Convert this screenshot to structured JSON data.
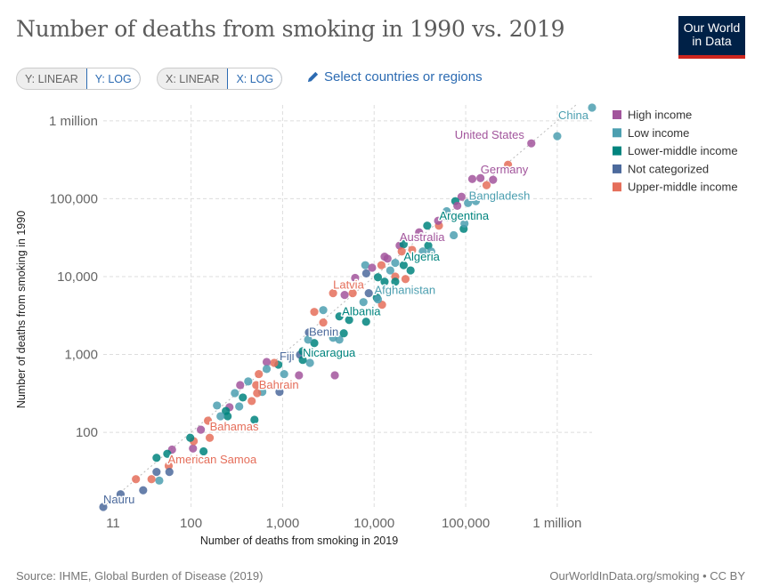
{
  "header": {
    "title": "Number of deaths from smoking in 1990 vs. 2019",
    "logo_line1": "Our World",
    "logo_line2": "in Data"
  },
  "controls": {
    "y_linear": "Y: LINEAR",
    "y_log": "Y: LOG",
    "x_linear": "X: LINEAR",
    "x_log": "X: LOG",
    "select": "Select countries or regions",
    "select_icon": "pencil-icon"
  },
  "footer": {
    "source": "Source: IHME, Global Burden of Disease (2019)",
    "credit": "OurWorldInData.org/smoking • CC BY"
  },
  "chart_data": {
    "type": "scatter",
    "title": "Number of deaths from smoking in 1990 vs. 2019",
    "xlabel": "Number of deaths from smoking in 2019",
    "ylabel": "Number of deaths from smoking in 1990",
    "xscale": "log",
    "yscale": "log",
    "xlim": [
      11,
      2400000
    ],
    "ylim": [
      11,
      1600000
    ],
    "xticks": [
      {
        "v": 11,
        "label": "11"
      },
      {
        "v": 100,
        "label": "100"
      },
      {
        "v": 1000,
        "label": "1,000"
      },
      {
        "v": 10000,
        "label": "10,000"
      },
      {
        "v": 100000,
        "label": "100,000"
      },
      {
        "v": 1000000,
        "label": "1 million"
      }
    ],
    "yticks": [
      {
        "v": 100,
        "label": "100"
      },
      {
        "v": 1000,
        "label": "1,000"
      },
      {
        "v": 10000,
        "label": "10,000"
      },
      {
        "v": 100000,
        "label": "100,000"
      },
      {
        "v": 1000000,
        "label": "1 million"
      }
    ],
    "grid": true,
    "legend_position": "right",
    "reference_line": "y = x (dotted)",
    "groups": [
      {
        "key": "H",
        "name": "High income",
        "color": "#a2559c"
      },
      {
        "key": "L",
        "name": "Low income",
        "color": "#4c9fb0"
      },
      {
        "key": "M",
        "name": "Lower-middle income",
        "color": "#00847e"
      },
      {
        "key": "N",
        "name": "Not categorized",
        "color": "#4c6a9c"
      },
      {
        "key": "U",
        "name": "Upper-middle income",
        "color": "#e56e5a"
      }
    ],
    "points": [
      {
        "g": "L",
        "x": 2400000,
        "y": 1480000,
        "label": "China"
      },
      {
        "g": "L",
        "x": 1000000,
        "y": 635000
      },
      {
        "g": "H",
        "x": 521000,
        "y": 514000,
        "label": "United States"
      },
      {
        "g": "U",
        "x": 290000,
        "y": 273000
      },
      {
        "g": "H",
        "x": 118000,
        "y": 179000
      },
      {
        "g": "H",
        "x": 145000,
        "y": 184000
      },
      {
        "g": "H",
        "x": 199000,
        "y": 175000,
        "label": "Germany"
      },
      {
        "g": "U",
        "x": 169000,
        "y": 149000
      },
      {
        "g": "H",
        "x": 90000,
        "y": 106000
      },
      {
        "g": "M",
        "x": 77000,
        "y": 93000
      },
      {
        "g": "L",
        "x": 106000,
        "y": 88000,
        "label": "Bangladesh"
      },
      {
        "g": "L",
        "x": 129000,
        "y": 93000
      },
      {
        "g": "H",
        "x": 81000,
        "y": 81000
      },
      {
        "g": "L",
        "x": 62000,
        "y": 69000
      },
      {
        "g": "M",
        "x": 63000,
        "y": 58000,
        "label": "Argentina"
      },
      {
        "g": "M",
        "x": 38000,
        "y": 45000
      },
      {
        "g": "U",
        "x": 51000,
        "y": 45000
      },
      {
        "g": "M",
        "x": 95000,
        "y": 41000
      },
      {
        "g": "L",
        "x": 97000,
        "y": 48000
      },
      {
        "g": "H",
        "x": 50000,
        "y": 52000
      },
      {
        "g": "L",
        "x": 74000,
        "y": 34000
      },
      {
        "g": "H",
        "x": 31000,
        "y": 37000
      },
      {
        "g": "H",
        "x": 19000,
        "y": 25000,
        "label": "Australia"
      },
      {
        "g": "M",
        "x": 21000,
        "y": 26000
      },
      {
        "g": "M",
        "x": 39000,
        "y": 25000
      },
      {
        "g": "U",
        "x": 20000,
        "y": 21000
      },
      {
        "g": "U",
        "x": 26000,
        "y": 22000
      },
      {
        "g": "L",
        "x": 34000,
        "y": 21000
      },
      {
        "g": "L",
        "x": 42000,
        "y": 21000
      },
      {
        "g": "H",
        "x": 13000,
        "y": 18000
      },
      {
        "g": "H",
        "x": 14000,
        "y": 17000
      },
      {
        "g": "L",
        "x": 17000,
        "y": 15000
      },
      {
        "g": "M",
        "x": 21000,
        "y": 14000,
        "label": "Algeria"
      },
      {
        "g": "M",
        "x": 25000,
        "y": 12000
      },
      {
        "g": "L",
        "x": 8000,
        "y": 14000
      },
      {
        "g": "H",
        "x": 9500,
        "y": 13000
      },
      {
        "g": "U",
        "x": 12000,
        "y": 14000
      },
      {
        "g": "L",
        "x": 15000,
        "y": 12000
      },
      {
        "g": "N",
        "x": 8200,
        "y": 11000
      },
      {
        "g": "M",
        "x": 11000,
        "y": 9800
      },
      {
        "g": "U",
        "x": 17000,
        "y": 10000
      },
      {
        "g": "U",
        "x": 22000,
        "y": 9300
      },
      {
        "g": "M",
        "x": 13000,
        "y": 8600
      },
      {
        "g": "H",
        "x": 6200,
        "y": 9600
      },
      {
        "g": "M",
        "x": 17000,
        "y": 8600
      },
      {
        "g": "U",
        "x": 3560,
        "y": 6120,
        "label": "Latvia"
      },
      {
        "g": "H",
        "x": 4760,
        "y": 5810
      },
      {
        "g": "U",
        "x": 5830,
        "y": 6120
      },
      {
        "g": "N",
        "x": 8730,
        "y": 6120
      },
      {
        "g": "M",
        "x": 10700,
        "y": 5370
      },
      {
        "g": "U",
        "x": 12200,
        "y": 4350
      },
      {
        "g": "L",
        "x": 7640,
        "y": 4700
      },
      {
        "g": "L",
        "x": 11000,
        "y": 5100,
        "label": "Afghanistan"
      },
      {
        "g": "M",
        "x": 4170,
        "y": 3080,
        "label": "Albania"
      },
      {
        "g": "U",
        "x": 2220,
        "y": 3520
      },
      {
        "g": "L",
        "x": 2780,
        "y": 3710
      },
      {
        "g": "U",
        "x": 2780,
        "y": 2570
      },
      {
        "g": "M",
        "x": 5330,
        "y": 2770
      },
      {
        "g": "M",
        "x": 8170,
        "y": 2630
      },
      {
        "g": "L",
        "x": 3560,
        "y": 1640
      },
      {
        "g": "L",
        "x": 4170,
        "y": 1550
      },
      {
        "g": "M",
        "x": 4660,
        "y": 1870
      },
      {
        "g": "M",
        "x": 2220,
        "y": 1400
      },
      {
        "g": "N",
        "x": 1940,
        "y": 1920,
        "label": "Benin"
      },
      {
        "g": "L",
        "x": 1900,
        "y": 1550
      },
      {
        "g": "N",
        "x": 1550,
        "y": 990,
        "label": "Fiji"
      },
      {
        "g": "M",
        "x": 1660,
        "y": 1100,
        "label": "Nicaragua"
      },
      {
        "g": "L",
        "x": 1990,
        "y": 780
      },
      {
        "g": "M",
        "x": 1660,
        "y": 850
      },
      {
        "g": "H",
        "x": 1510,
        "y": 540
      },
      {
        "g": "H",
        "x": 3720,
        "y": 540
      },
      {
        "g": "L",
        "x": 1040,
        "y": 560
      },
      {
        "g": "N",
        "x": 925,
        "y": 330
      },
      {
        "g": "M",
        "x": 900,
        "y": 740
      },
      {
        "g": "U",
        "x": 810,
        "y": 780
      },
      {
        "g": "H",
        "x": 670,
        "y": 800
      },
      {
        "g": "L",
        "x": 670,
        "y": 650
      },
      {
        "g": "U",
        "x": 550,
        "y": 560
      },
      {
        "g": "L",
        "x": 600,
        "y": 330
      },
      {
        "g": "U",
        "x": 515,
        "y": 404,
        "label": "Bahrain"
      },
      {
        "g": "U",
        "x": 527,
        "y": 319
      },
      {
        "g": "M",
        "x": 493,
        "y": 145
      },
      {
        "g": "U",
        "x": 460,
        "y": 252
      },
      {
        "g": "L",
        "x": 421,
        "y": 450
      },
      {
        "g": "H",
        "x": 344,
        "y": 404
      },
      {
        "g": "L",
        "x": 301,
        "y": 319
      },
      {
        "g": "M",
        "x": 368,
        "y": 280
      },
      {
        "g": "L",
        "x": 336,
        "y": 215
      },
      {
        "g": "M",
        "x": 251,
        "y": 161
      },
      {
        "g": "H",
        "x": 263,
        "y": 210
      },
      {
        "g": "M",
        "x": 240,
        "y": 188
      },
      {
        "g": "L",
        "x": 210,
        "y": 161
      },
      {
        "g": "L",
        "x": 192,
        "y": 221
      },
      {
        "g": "U",
        "x": 153,
        "y": 141,
        "label": "Bahamas"
      },
      {
        "g": "U",
        "x": 160,
        "y": 85
      },
      {
        "g": "H",
        "x": 128,
        "y": 108
      },
      {
        "g": "M",
        "x": 137,
        "y": 57
      },
      {
        "g": "H",
        "x": 105,
        "y": 62
      },
      {
        "g": "U",
        "x": 107,
        "y": 77
      },
      {
        "g": "M",
        "x": 98,
        "y": 85
      },
      {
        "g": "U",
        "x": 57,
        "y": 37,
        "label": "American Samoa"
      },
      {
        "g": "H",
        "x": 62,
        "y": 60
      },
      {
        "g": "M",
        "x": 55,
        "y": 53
      },
      {
        "g": "M",
        "x": 42,
        "y": 47
      },
      {
        "g": "N",
        "x": 58,
        "y": 31
      },
      {
        "g": "L",
        "x": 45,
        "y": 24
      },
      {
        "g": "N",
        "x": 42,
        "y": 31
      },
      {
        "g": "U",
        "x": 37,
        "y": 25
      },
      {
        "g": "N",
        "x": 30,
        "y": 18
      },
      {
        "g": "U",
        "x": 25,
        "y": 25
      },
      {
        "g": "N",
        "x": 17,
        "y": 16
      },
      {
        "g": "N",
        "x": 11,
        "y": 11,
        "label": "Nauru"
      }
    ]
  }
}
